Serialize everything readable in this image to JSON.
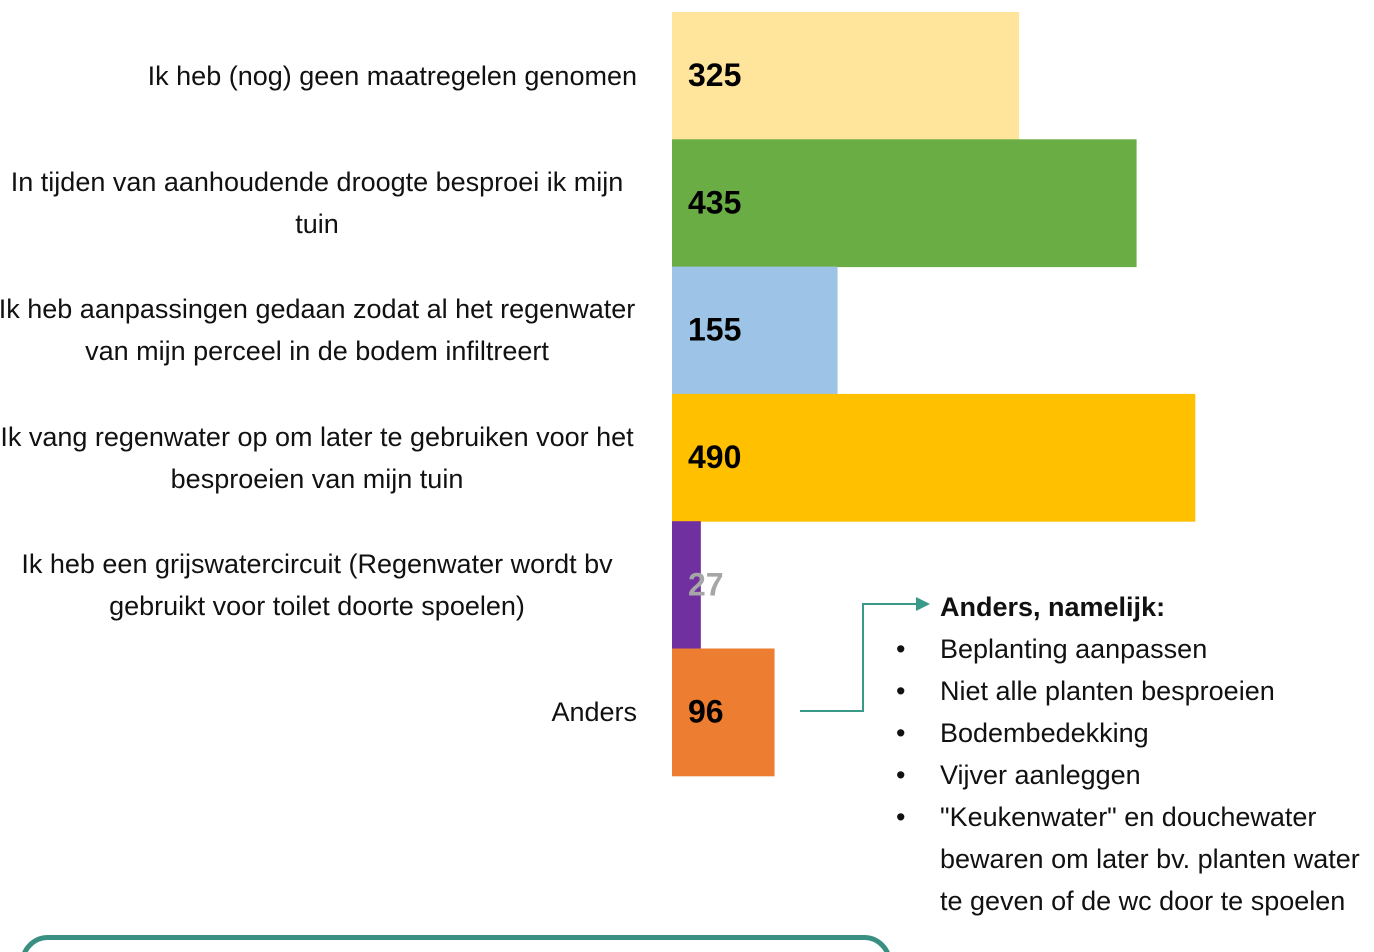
{
  "chart_data": {
    "type": "bar",
    "orientation": "horizontal",
    "categories": [
      "Ik heb (nog) geen maatregelen genomen",
      "In tijden van aanhoudende droogte besproei ik mijn tuin",
      "Ik heb aanpassingen gedaan zodat al het regenwater van mijn perceel in de bodem infiltreert",
      "Ik vang regenwater op om later te gebruiken voor het besproeien van mijn tuin",
      "Ik heb een grijswatercircuit (Regenwater wordt bv gebruikt voor toilet doorte spoelen)",
      "Anders"
    ],
    "values": [
      325,
      435,
      155,
      490,
      27,
      96
    ],
    "colors": [
      "#fee59b",
      "#6aad45",
      "#9dc3e6",
      "#ffc000",
      "#7030a0",
      "#ed7d31"
    ],
    "label_colors": [
      "#000000",
      "#000000",
      "#000000",
      "#000000",
      "#a6a6a6",
      "#000000"
    ]
  },
  "annotation": {
    "title": "Anders, namelijk:",
    "items": [
      "Beplanting aanpassen",
      "Niet alle planten besproeien",
      "Bodembedekking",
      "Vijver aanleggen",
      "\"Keukenwater\" en douchewater bewaren om later bv. planten water te geven of de wc door te spoelen"
    ]
  }
}
